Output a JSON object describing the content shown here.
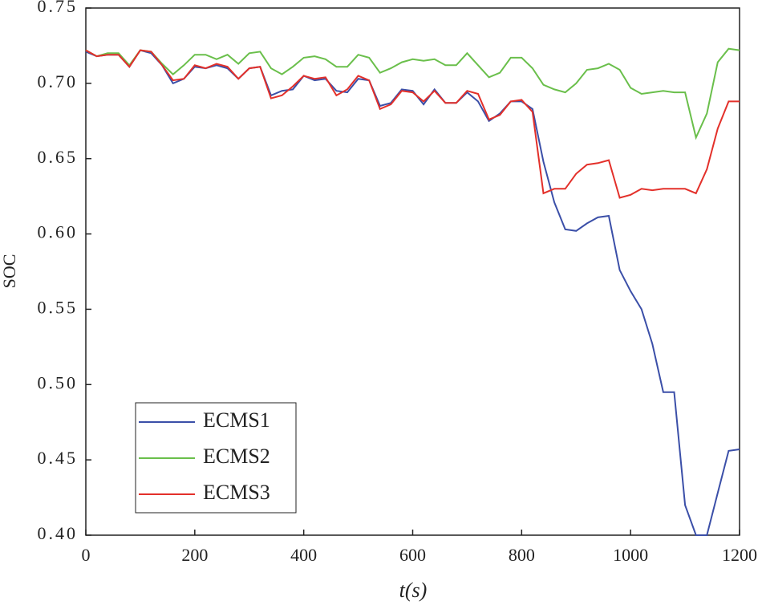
{
  "chart_data": {
    "type": "line",
    "xlabel": "t(s)",
    "ylabel": "SOC",
    "x": [
      0,
      20,
      40,
      60,
      80,
      100,
      120,
      140,
      160,
      180,
      200,
      220,
      240,
      260,
      280,
      300,
      320,
      340,
      360,
      380,
      400,
      420,
      440,
      460,
      480,
      500,
      520,
      540,
      560,
      580,
      600,
      620,
      640,
      660,
      680,
      700,
      720,
      740,
      760,
      780,
      800,
      820,
      840,
      860,
      880,
      900,
      920,
      940,
      960,
      980,
      1000,
      1020,
      1040,
      1060,
      1080,
      1100,
      1120,
      1140,
      1160,
      1180,
      1200
    ],
    "series": [
      {
        "name": "ECMS1",
        "color": "#3b4fa8",
        "values": [
          0.721,
          0.718,
          0.719,
          0.719,
          0.711,
          0.722,
          0.72,
          0.712,
          0.7,
          0.703,
          0.711,
          0.71,
          0.712,
          0.71,
          0.703,
          0.71,
          0.711,
          0.692,
          0.695,
          0.696,
          0.705,
          0.702,
          0.703,
          0.695,
          0.694,
          0.703,
          0.702,
          0.685,
          0.687,
          0.696,
          0.695,
          0.686,
          0.696,
          0.687,
          0.687,
          0.694,
          0.688,
          0.675,
          0.68,
          0.688,
          0.688,
          0.683,
          0.648,
          0.621,
          0.603,
          0.602,
          0.607,
          0.611,
          0.612,
          0.576,
          0.562,
          0.55,
          0.527,
          0.495,
          0.495,
          0.42,
          0.4,
          0.4,
          0.428,
          0.456,
          0.457
        ]
      },
      {
        "name": "ECMS2",
        "color": "#6abf4b",
        "values": [
          0.722,
          0.718,
          0.72,
          0.72,
          0.712,
          0.722,
          0.721,
          0.713,
          0.706,
          0.712,
          0.719,
          0.719,
          0.716,
          0.719,
          0.713,
          0.72,
          0.721,
          0.71,
          0.706,
          0.711,
          0.717,
          0.718,
          0.716,
          0.711,
          0.711,
          0.719,
          0.717,
          0.707,
          0.71,
          0.714,
          0.716,
          0.715,
          0.716,
          0.712,
          0.712,
          0.72,
          0.712,
          0.704,
          0.707,
          0.717,
          0.717,
          0.71,
          0.699,
          0.696,
          0.694,
          0.7,
          0.709,
          0.71,
          0.713,
          0.709,
          0.697,
          0.693,
          0.694,
          0.695,
          0.694,
          0.694,
          0.664,
          0.68,
          0.714,
          0.723,
          0.722
        ]
      },
      {
        "name": "ECMS3",
        "color": "#e3302a",
        "values": [
          0.722,
          0.718,
          0.719,
          0.719,
          0.711,
          0.722,
          0.721,
          0.712,
          0.702,
          0.703,
          0.712,
          0.71,
          0.713,
          0.711,
          0.703,
          0.71,
          0.711,
          0.69,
          0.692,
          0.698,
          0.705,
          0.703,
          0.704,
          0.692,
          0.696,
          0.705,
          0.702,
          0.683,
          0.686,
          0.695,
          0.694,
          0.688,
          0.695,
          0.687,
          0.687,
          0.695,
          0.693,
          0.676,
          0.679,
          0.688,
          0.689,
          0.681,
          0.627,
          0.63,
          0.63,
          0.64,
          0.646,
          0.647,
          0.649,
          0.624,
          0.626,
          0.63,
          0.629,
          0.63,
          0.63,
          0.63,
          0.627,
          0.643,
          0.67,
          0.688,
          0.688
        ]
      }
    ],
    "xlim": [
      0,
      1200
    ],
    "xticks": [
      0,
      200,
      400,
      600,
      800,
      1000,
      1200
    ],
    "ylim": [
      0.4,
      0.75
    ],
    "yticks": [
      {
        "value": 0.4,
        "label": "0.40"
      },
      0.45,
      {
        "value": 0.5,
        "label": "0.50"
      },
      0.55,
      {
        "value": 0.6,
        "label": "0.60"
      },
      0.65,
      {
        "value": 0.7,
        "label": "0.70"
      },
      0.75
    ],
    "legend": "lower left",
    "grid": false
  }
}
